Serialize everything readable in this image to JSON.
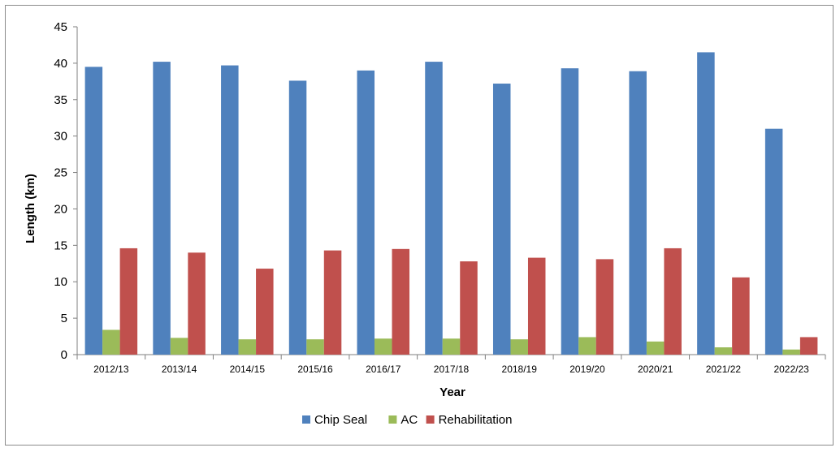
{
  "chart_data": {
    "type": "bar",
    "title": "",
    "xlabel": "Year",
    "ylabel": "Length (km)",
    "ylim": [
      0,
      45
    ],
    "yticks": [
      0,
      5,
      10,
      15,
      20,
      25,
      30,
      35,
      40,
      45
    ],
    "grid": false,
    "legend_position": "bottom",
    "categories": [
      "2012/13",
      "2013/14",
      "2014/15",
      "2015/16",
      "2016/17",
      "2017/18",
      "2018/19",
      "2019/20",
      "2020/21",
      "2021/22",
      "2022/23"
    ],
    "series": [
      {
        "name": "Chip Seal",
        "color": "#4f81bd",
        "values": [
          39.5,
          40.2,
          39.7,
          37.6,
          39.0,
          40.2,
          37.2,
          39.3,
          38.9,
          41.5,
          31.0
        ]
      },
      {
        "name": "AC",
        "color": "#9bbb59",
        "values": [
          3.4,
          2.3,
          2.1,
          2.1,
          2.2,
          2.2,
          2.1,
          2.4,
          1.8,
          1.0,
          0.7
        ]
      },
      {
        "name": "Rehabilitation",
        "color": "#c0504d",
        "values": [
          14.6,
          14.0,
          11.8,
          14.3,
          14.5,
          12.8,
          13.3,
          13.1,
          14.6,
          10.6,
          2.4
        ]
      }
    ]
  }
}
